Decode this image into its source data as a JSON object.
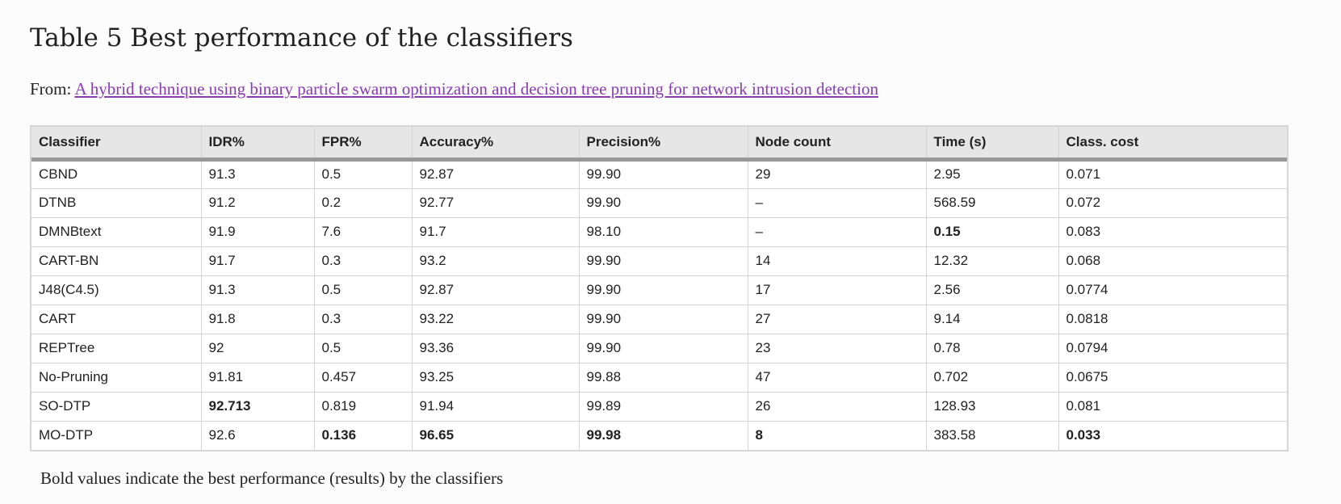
{
  "title": "Table 5 Best performance of the classifiers",
  "source": {
    "prefix": "From:",
    "link_text": "A hybrid technique using binary particle swarm optimization and decision tree pruning for network intrusion detection"
  },
  "table": {
    "headers": [
      "Classifier",
      "IDR%",
      "FPR%",
      "Accuracy%",
      "Precision%",
      "Node count",
      "Time (s)",
      "Class. cost"
    ],
    "rows": [
      {
        "cells": [
          "CBND",
          "91.3",
          "0.5",
          "92.87",
          "99.90",
          "29",
          "2.95",
          "0.071"
        ],
        "bold": []
      },
      {
        "cells": [
          "DTNB",
          "91.2",
          "0.2",
          "92.77",
          "99.90",
          "–",
          "568.59",
          "0.072"
        ],
        "bold": []
      },
      {
        "cells": [
          "DMNBtext",
          "91.9",
          "7.6",
          "91.7",
          "98.10",
          "–",
          "0.15",
          "0.083"
        ],
        "bold": [
          6
        ]
      },
      {
        "cells": [
          "CART-BN",
          "91.7",
          "0.3",
          "93.2",
          "99.90",
          "14",
          "12.32",
          "0.068"
        ],
        "bold": []
      },
      {
        "cells": [
          "J48(C4.5)",
          "91.3",
          "0.5",
          "92.87",
          "99.90",
          "17",
          "2.56",
          "0.0774"
        ],
        "bold": []
      },
      {
        "cells": [
          "CART",
          "91.8",
          "0.3",
          "93.22",
          "99.90",
          "27",
          "9.14",
          "0.0818"
        ],
        "bold": []
      },
      {
        "cells": [
          "REPTree",
          "92",
          "0.5",
          "93.36",
          "99.90",
          "23",
          "0.78",
          "0.0794"
        ],
        "bold": []
      },
      {
        "cells": [
          "No-Pruning",
          "91.81",
          "0.457",
          "93.25",
          "99.88",
          "47",
          "0.702",
          "0.0675"
        ],
        "bold": []
      },
      {
        "cells": [
          "SO-DTP",
          "92.713",
          "0.819",
          "91.94",
          "99.89",
          "26",
          "128.93",
          "0.081"
        ],
        "bold": [
          1
        ]
      },
      {
        "cells": [
          "MO-DTP",
          "92.6",
          "0.136",
          "96.65",
          "99.98",
          "8",
          "383.58",
          "0.033"
        ],
        "bold": [
          2,
          3,
          4,
          5,
          7
        ]
      }
    ]
  },
  "footnote": "Bold values indicate the best performance (results) by the classifiers",
  "colors": {
    "link": "#8a3bb1",
    "header_bg": "#e6e6e6",
    "header_rule": "#999999",
    "grid": "#d3d3d3"
  }
}
